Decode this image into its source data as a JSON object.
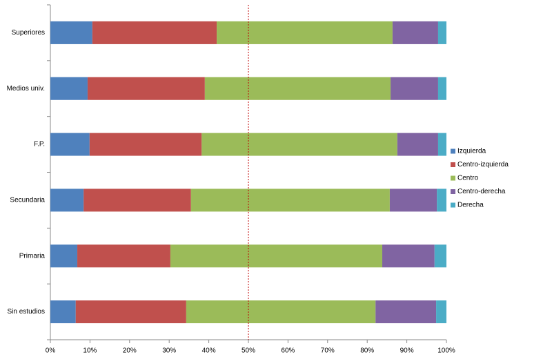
{
  "chart_data": {
    "type": "stacked-barh",
    "categories": [
      "Superiores",
      "Medios univ.",
      "F.P.",
      "Secundaria",
      "Primaria",
      "Sin estudios"
    ],
    "series": [
      {
        "name": "Izquierda",
        "color": "#4f81bd",
        "values": [
          10.6,
          9.4,
          9.9,
          8.4,
          6.8,
          6.4
        ]
      },
      {
        "name": "Centro-izquierda",
        "color": "#c0504d",
        "values": [
          31.4,
          29.6,
          28.3,
          27.1,
          23.5,
          27.9
        ]
      },
      {
        "name": "Centro",
        "color": "#9bbb59",
        "values": [
          44.4,
          46.9,
          49.4,
          50.2,
          53.5,
          47.8
        ]
      },
      {
        "name": "Centro-derecha",
        "color": "#8064a2",
        "values": [
          11.5,
          12.0,
          10.3,
          11.9,
          13.2,
          15.3
        ]
      },
      {
        "name": "Derecha",
        "color": "#4bacc6",
        "values": [
          2.1,
          2.1,
          2.1,
          2.4,
          3.0,
          2.6
        ]
      }
    ],
    "xlim": [
      0,
      100
    ],
    "xticks": [
      {
        "value": 0,
        "label": "0%"
      },
      {
        "value": 10,
        "label": "10%"
      },
      {
        "value": 20,
        "label": "20%"
      },
      {
        "value": 30,
        "label": "30%"
      },
      {
        "value": 40,
        "label": "40%"
      },
      {
        "value": 50,
        "label": "50%"
      },
      {
        "value": 60,
        "label": "60%"
      },
      {
        "value": 70,
        "label": "70%"
      },
      {
        "value": 80,
        "label": "80%"
      },
      {
        "value": 90,
        "label": "90%"
      },
      {
        "value": 100,
        "label": "100%"
      }
    ],
    "reference_line": {
      "x": 50,
      "color": "#c00000"
    },
    "legend": "right"
  }
}
